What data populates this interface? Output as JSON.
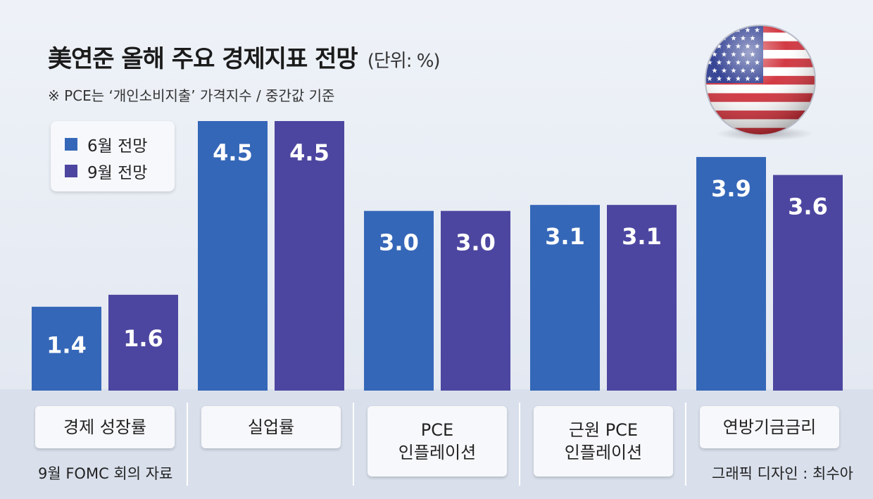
{
  "title": "美연준 올해 주요 경제지표 전망",
  "unit": "(단위: %)",
  "note": "※ PCE는 ‘개인소비지출’ 가격지수 / 중간값 기준",
  "source": "9월 FOMC 회의 자료",
  "credit": "그래픽 디자인 : 최수아",
  "flag_icon": "us-flag-icon",
  "colors": {
    "june": "#3567b8",
    "september": "#4d46a0",
    "background": "#e8ecf4",
    "label_box": "#f7f8fb"
  },
  "chart_data": {
    "type": "bar",
    "categories": [
      "경제 성장률",
      "실업률",
      "PCE\n인플레이션",
      "근원 PCE\n인플레이션",
      "연방기금금리"
    ],
    "series": [
      {
        "name": "6월 전망",
        "values": [
          1.4,
          4.5,
          3.0,
          3.1,
          3.9
        ],
        "labels": [
          "1.4",
          "4.5",
          "3.0",
          "3.1",
          "3.9"
        ]
      },
      {
        "name": "9월 전망",
        "values": [
          1.6,
          4.5,
          3.0,
          3.1,
          3.6
        ],
        "labels": [
          "1.6",
          "4.5",
          "3.0",
          "3.1",
          "3.6"
        ]
      }
    ],
    "ylim": [
      0,
      4.5
    ],
    "legend": "top-left",
    "grid": false
  }
}
